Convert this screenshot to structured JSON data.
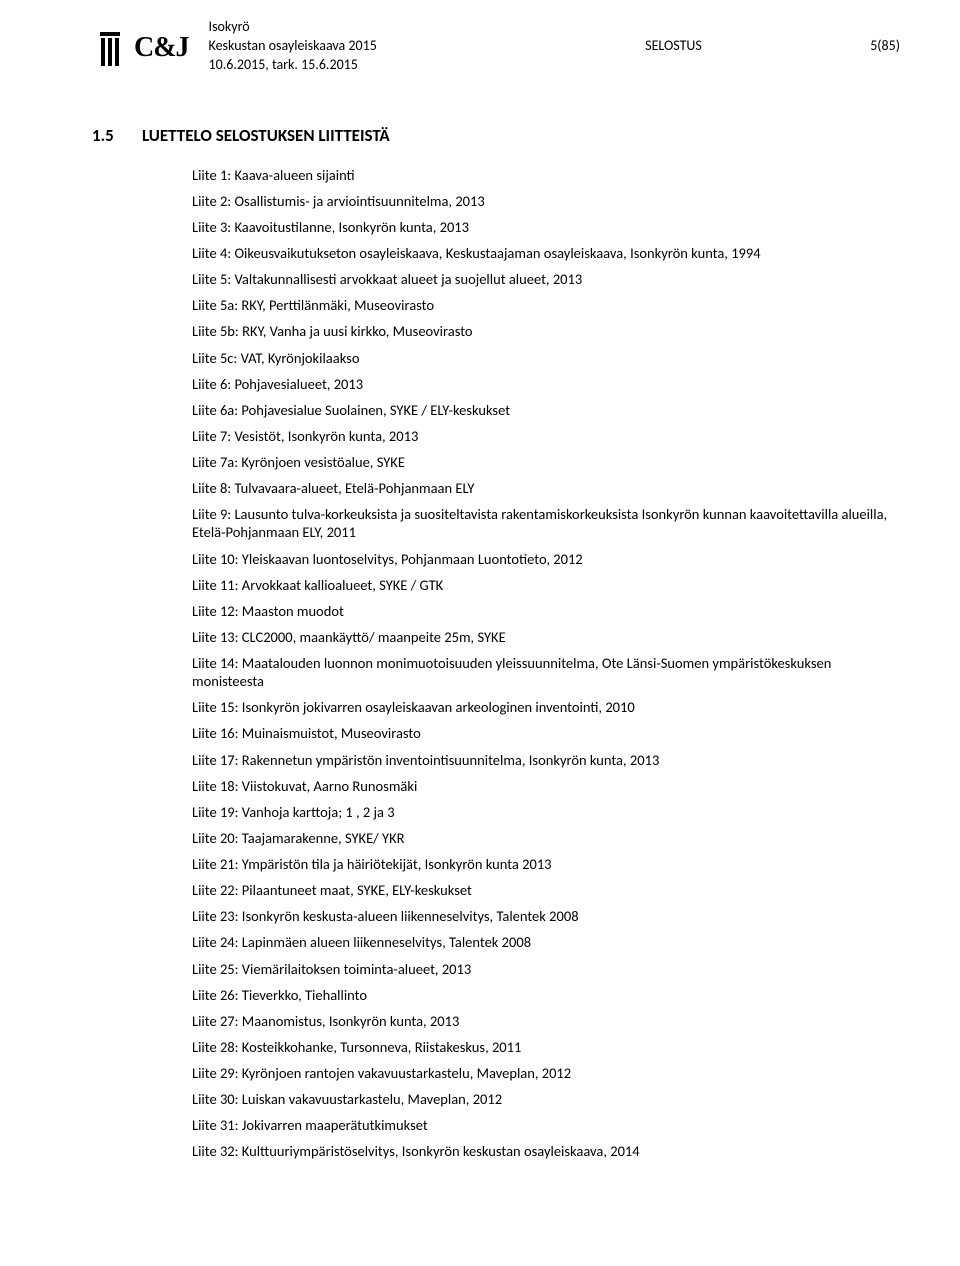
{
  "header": {
    "line1": "Isokyrö",
    "line2_left": "Keskustan osayleiskaava 2015",
    "line2_center": "SELOSTUS",
    "line2_right": "5(85)",
    "line3": "10.6.2015, tark. 15.6.2015",
    "logo_text": "C&J"
  },
  "section": {
    "number": "1.5",
    "title": "LUETTELO SELOSTUKSEN LIITTEISTÄ"
  },
  "items": [
    "Liite 1: Kaava-alueen sijainti",
    "Liite 2: Osallistumis- ja arviointisuunnitelma, 2013",
    "Liite 3: Kaavoitustilanne, Isonkyrön kunta, 2013",
    "Liite 4: Oikeusvaikutukseton osayleiskaava, Keskustaajaman osayleiskaava, Isonkyrön kunta, 1994",
    "Liite 5: Valtakunnallisesti arvokkaat alueet ja suojellut alueet, 2013",
    "Liite 5a: RKY, Perttilänmäki, Museovirasto",
    "Liite 5b: RKY, Vanha ja uusi kirkko, Museovirasto",
    "Liite 5c: VAT, Kyrönjokilaakso",
    "Liite 6: Pohjavesialueet, 2013",
    "Liite 6a: Pohjavesialue Suolainen, SYKE / ELY-keskukset",
    "Liite 7: Vesistöt, Isonkyrön kunta, 2013",
    "Liite 7a: Kyrönjoen vesistöalue, SYKE",
    "Liite 8: Tulvavaara-alueet, Etelä-Pohjanmaan ELY",
    "Liite 9: Lausunto tulva-korkeuksista ja suositeltavista rakentamiskorkeuksista Isonkyrön kunnan kaavoitettavilla alueilla, Etelä-Pohjanmaan ELY, 2011",
    "Liite 10: Yleiskaavan luontoselvitys, Pohjanmaan Luontotieto, 2012",
    "Liite 11: Arvokkaat kallioalueet, SYKE / GTK",
    "Liite 12: Maaston muodot",
    "Liite 13: CLC2000, maankäyttö/ maanpeite 25m, SYKE",
    "Liite 14: Maatalouden luonnon monimuotoisuuden yleissuunnitelma, Ote Länsi-Suomen ympäristökeskuksen monisteesta",
    "Liite 15: Isonkyrön jokivarren osayleiskaavan arkeologinen inventointi, 2010",
    "Liite 16: Muinaismuistot, Museovirasto",
    "Liite 17: Rakennetun ympäristön inventointisuunnitelma, Isonkyrön kunta, 2013",
    "Liite 18: Viistokuvat, Aarno Runosmäki",
    "Liite 19: Vanhoja karttoja; 1 , 2 ja 3",
    "Liite 20: Taajamarakenne, SYKE/ YKR",
    "Liite 21: Ympäristön tila ja häiriötekijät, Isonkyrön kunta 2013",
    "Liite 22: Pilaantuneet maat, SYKE, ELY-keskukset",
    "Liite 23: Isonkyrön keskusta-alueen liikenneselvitys, Talentek 2008",
    "Liite 24: Lapinmäen alueen liikenneselvitys, Talentek 2008",
    "Liite 25: Viemärilaitoksen toiminta-alueet, 2013",
    "Liite 26: Tieverkko, Tiehallinto",
    "Liite 27: Maanomistus, Isonkyrön kunta, 2013",
    "Liite 28: Kosteikkohanke, Tursonneva, Riistakeskus, 2011",
    "Liite 29: Kyrönjoen rantojen vakavuustarkastelu, Maveplan, 2012",
    "Liite 30: Luiskan vakavuustarkastelu, Maveplan, 2012",
    "Liite 31: Jokivarren maaperätutkimukset",
    "Liite 32: Kulttuuriympäristöselvitys, Isonkyrön keskustan osayleiskaava, 2014"
  ]
}
